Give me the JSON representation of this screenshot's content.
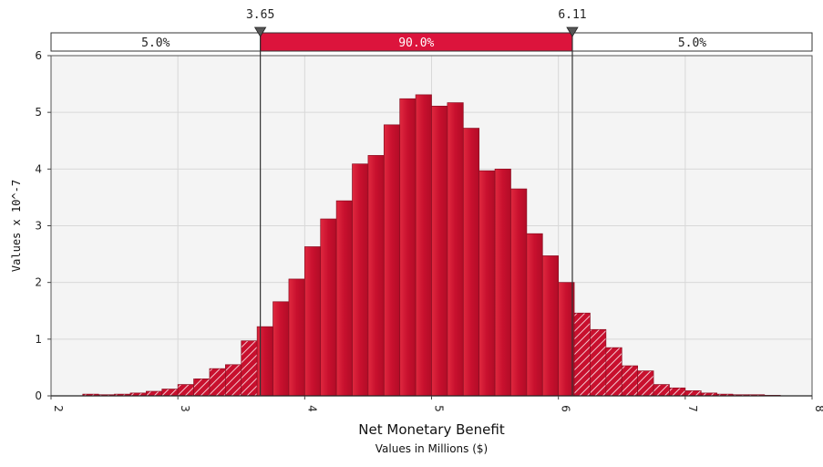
{
  "chart_data": {
    "type": "histogram",
    "title": "",
    "xlabel": "Net Monetary Benefit",
    "xsublabel": "Values in Millions ($)",
    "ylabel": "Values x 10^-7",
    "xlim": [
      2,
      8
    ],
    "ylim": [
      0,
      6
    ],
    "xticks": [
      "2",
      "3",
      "4",
      "5",
      "6",
      "7",
      "8"
    ],
    "yticks": [
      "0",
      "1",
      "2",
      "3",
      "4",
      "5",
      "6"
    ],
    "grid": true,
    "bin_start": 2.25,
    "bin_width": 0.125,
    "values": [
      0.03,
      0.02,
      0.03,
      0.05,
      0.08,
      0.12,
      0.2,
      0.3,
      0.48,
      0.55,
      0.97,
      1.22,
      1.66,
      2.06,
      2.63,
      3.12,
      3.44,
      4.09,
      4.24,
      4.78,
      5.24,
      5.31,
      5.11,
      5.17,
      4.72,
      3.97,
      4.0,
      3.65,
      2.86,
      2.47,
      2.0,
      1.46,
      1.17,
      0.85,
      0.53,
      0.44,
      0.2,
      0.14,
      0.09,
      0.05,
      0.03,
      0.02,
      0.02,
      0.01
    ],
    "delimiters": {
      "left": {
        "value": 3.65,
        "label": "3.65"
      },
      "right": {
        "value": 6.11,
        "label": "6.11"
      }
    },
    "probability_bar": {
      "left": "5.0%",
      "middle": "90.0%",
      "right": "5.0%"
    },
    "colors": {
      "bar_fill": "#c8102e",
      "bar_fill_light": "#e0293f",
      "bar_edge": "#8a0f22",
      "tail_hatch": "#f4c7cf",
      "plot_background": "#f4f4f4",
      "grid": "#d8d8d8",
      "middle_band": "#dc143c"
    }
  }
}
